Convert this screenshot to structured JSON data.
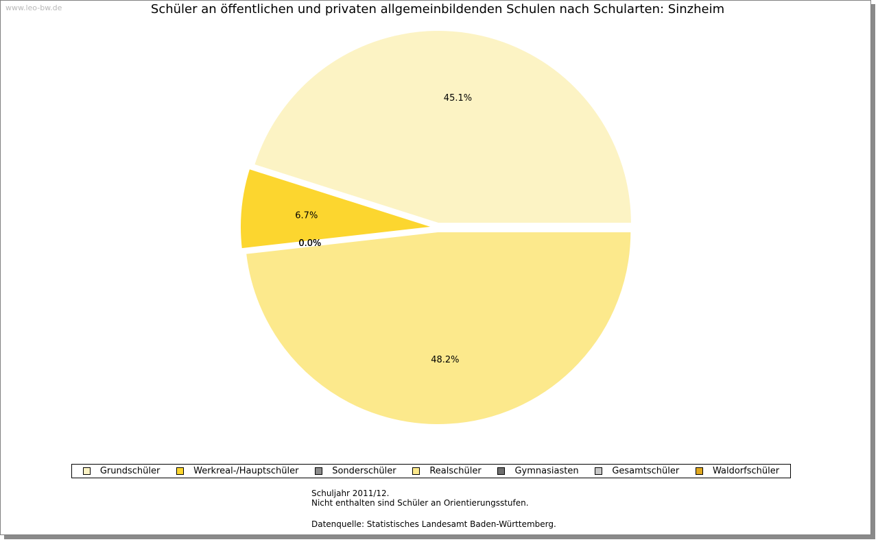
{
  "watermark": "www.leo-bw.de",
  "chart_data": {
    "type": "pie",
    "title": "Schüler an öffentlichen und privaten allgemeinbildenden Schulen nach Schularten: Sinzheim",
    "categories": [
      "Grundschüler",
      "Werkreal-/Hauptschüler",
      "Sonderschüler",
      "Realschüler",
      "Gymnasiasten",
      "Gesamtschüler",
      "Waldorfschüler"
    ],
    "values": [
      45.1,
      6.7,
      0.0,
      48.2,
      0.0,
      0.0,
      0.0
    ],
    "labels": [
      "45.1%",
      "6.7%",
      "0.0%",
      "48.2%",
      "0.0%",
      "0.0%",
      "0.0%"
    ],
    "colors": [
      "#fcf3c4",
      "#fcd62f",
      "#8c8c8c",
      "#fce98c",
      "#6e6e6e",
      "#c8c8c8",
      "#e0a820"
    ],
    "legend_position": "bottom",
    "notes": [
      "Schuljahr 2011/12.",
      "Nicht enthalten sind Schüler an Orientierungsstufen.",
      "Datenquelle: Statistisches Landesamt Baden-Württemberg."
    ]
  }
}
